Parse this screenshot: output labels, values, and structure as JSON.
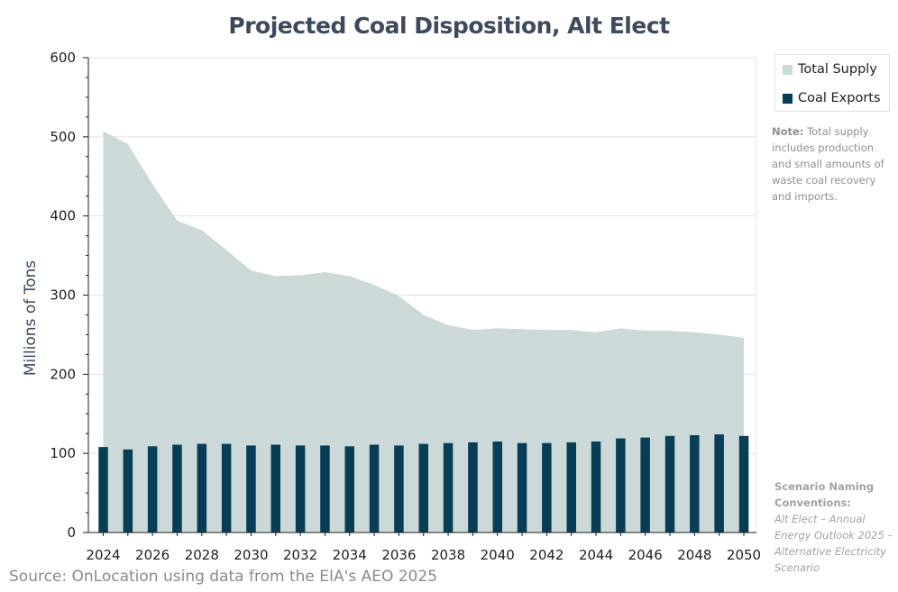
{
  "chart_data": {
    "type": "bar",
    "title": "Projected Coal Disposition, Alt Elect",
    "ylabel": "Millions of Tons",
    "xlabel": "",
    "ylim": [
      0,
      600
    ],
    "yticks": [
      0,
      100,
      200,
      300,
      400,
      500,
      600
    ],
    "categories": [
      2024,
      2025,
      2026,
      2027,
      2028,
      2029,
      2030,
      2031,
      2032,
      2033,
      2034,
      2035,
      2036,
      2037,
      2038,
      2039,
      2040,
      2041,
      2042,
      2043,
      2044,
      2045,
      2046,
      2047,
      2048,
      2049,
      2050
    ],
    "xtick_labels": [
      "2024",
      "2026",
      "2028",
      "2030",
      "2032",
      "2034",
      "2036",
      "2038",
      "2040",
      "2042",
      "2044",
      "2046",
      "2048",
      "2050"
    ],
    "series": [
      {
        "name": "Total Supply",
        "type": "area",
        "color": "#cbdad8",
        "values": [
          507,
          491,
          440,
          394,
          382,
          357,
          331,
          324,
          325,
          329,
          324,
          313,
          299,
          275,
          262,
          256,
          258,
          257,
          256,
          256,
          253,
          258,
          255,
          255,
          253,
          250,
          246
        ]
      },
      {
        "name": "Coal Exports",
        "type": "bar",
        "color": "#073e55",
        "values": [
          108,
          105,
          109,
          111,
          112,
          112,
          110,
          111,
          110,
          110,
          109,
          111,
          110,
          112,
          113,
          114,
          115,
          113,
          113,
          114,
          115,
          119,
          120,
          122,
          123,
          124,
          122
        ]
      }
    ],
    "grid": true,
    "legend_position": "top-right"
  },
  "legend": {
    "items": [
      {
        "label": "Total Supply",
        "color": "#cbdad8"
      },
      {
        "label": "Coal Exports",
        "color": "#073e55"
      }
    ]
  },
  "note": {
    "lead": "Note:",
    "text": " Total supply includes production and small amounts of waste coal recovery and imports."
  },
  "naming": {
    "heading": "Scenario Naming Conventions:",
    "body": "Alt Elect – Annual Energy Outlook 2025 – Alternative Electricity Scenario"
  },
  "source": "Source: OnLocation using data from the EIA's AEO 2025"
}
